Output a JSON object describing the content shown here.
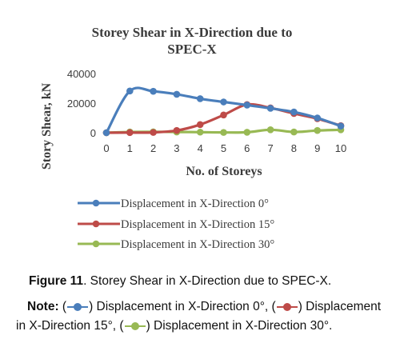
{
  "chart_data": {
    "type": "line",
    "title_line1": "Storey Shear in X-Direction due to",
    "title_line2": "SPEC-X",
    "xlabel": "No. of Storeys",
    "ylabel": "Story Shear, kN",
    "x": [
      0,
      1,
      2,
      3,
      4,
      5,
      6,
      7,
      8,
      9,
      10
    ],
    "x_ticks": [
      "0",
      "1",
      "2",
      "3",
      "4",
      "5",
      "6",
      "7",
      "8",
      "9",
      "10"
    ],
    "y_ticks": [
      "0",
      "20000",
      "40000"
    ],
    "ylim": [
      0,
      40000
    ],
    "grid": false,
    "legend_position": "bottom",
    "series": [
      {
        "name": "Displacement in X-Direction 0°",
        "color": "#4a7ebb",
        "values": [
          0,
          28200,
          28000,
          26000,
          23000,
          20800,
          18700,
          16500,
          14000,
          10000,
          4500
        ]
      },
      {
        "name": "Displacement in X-Direction 15°",
        "color": "#be4b48",
        "values": [
          0,
          100,
          200,
          1500,
          5500,
          12000,
          19000,
          16800,
          13000,
          9500,
          4800
        ]
      },
      {
        "name": "Displacement in X-Direction 30°",
        "color": "#98b954",
        "values": [
          0,
          500,
          600,
          500,
          400,
          200,
          300,
          2000,
          500,
          1500,
          2000
        ]
      }
    ]
  },
  "caption": {
    "label": "Figure 11",
    "text": ". Storey Shear in X-Direction due to SPEC-X."
  },
  "note": {
    "label": "Note:",
    "part1": " (",
    "part2": ") Displacement in X-Direction 0°, (",
    "part3": ") Displacement in X-Direction 15°, (",
    "part4": ") Displacement in X-Direction 30°."
  }
}
